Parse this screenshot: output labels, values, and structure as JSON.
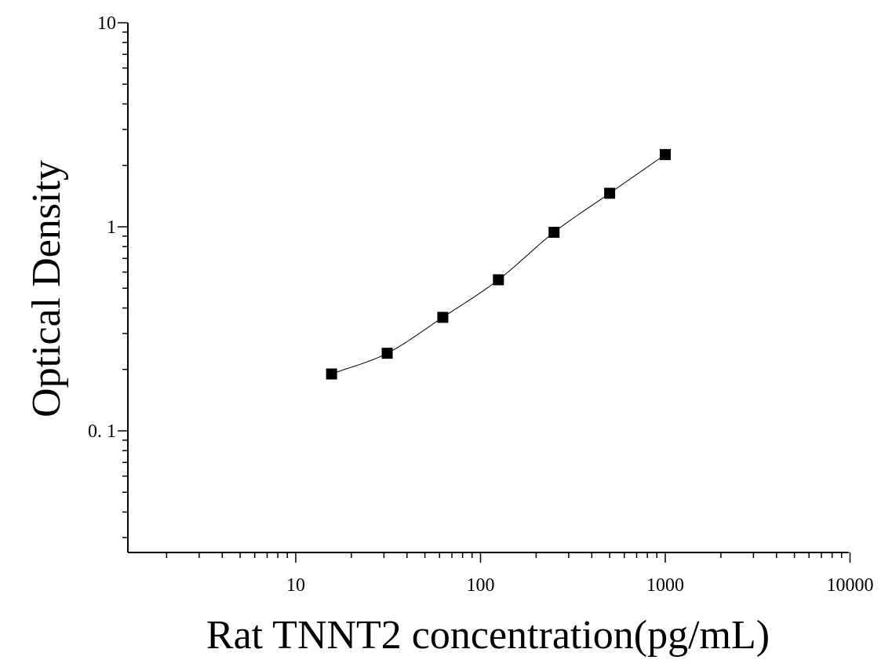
{
  "chart_data": {
    "type": "scatter",
    "xlabel": "Rat TNNT2 concentration(pg/mL)",
    "ylabel": "Optical Density",
    "x_scale": "log",
    "y_scale": "log",
    "xlim": [
      1.3,
      10000
    ],
    "ylim": [
      0.025,
      10
    ],
    "x_ticks": [
      {
        "value": 10,
        "label": "10"
      },
      {
        "value": 100,
        "label": "100"
      },
      {
        "value": 1000,
        "label": "1000"
      },
      {
        "value": 10000,
        "label": "10000"
      }
    ],
    "y_ticks": [
      {
        "value": 0.1,
        "label": "0. 1"
      },
      {
        "value": 1,
        "label": "1"
      },
      {
        "value": 10,
        "label": "10"
      }
    ],
    "series": [
      {
        "marker": "square",
        "color": "#000000",
        "x": [
          15.625,
          31.25,
          62.5,
          125,
          250,
          500,
          1000
        ],
        "y": [
          0.19,
          0.24,
          0.36,
          0.55,
          0.94,
          1.46,
          2.26
        ]
      }
    ],
    "fit_curve": {
      "color": "#000000",
      "style": "solid thin line through the points"
    },
    "grid": false,
    "legend": "none"
  }
}
